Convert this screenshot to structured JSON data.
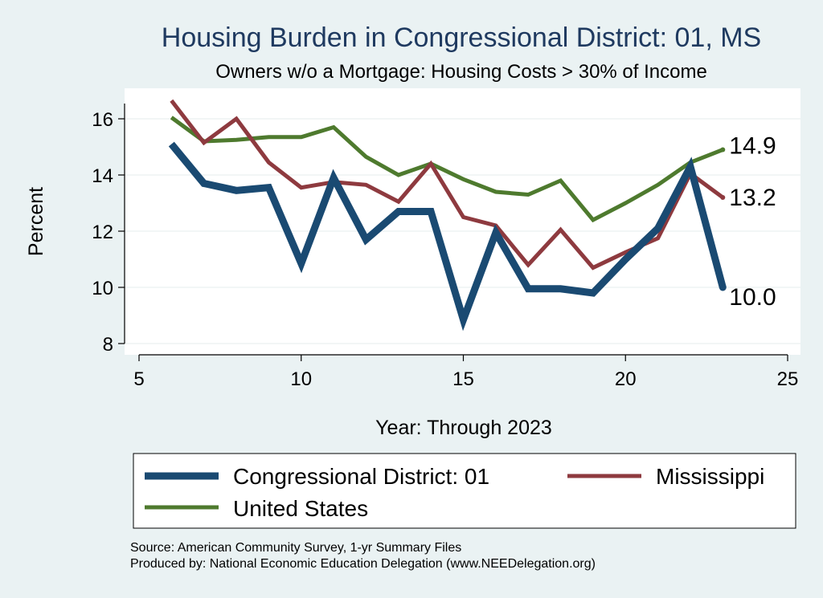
{
  "chart_data": {
    "type": "line",
    "title": "Housing Burden in Congressional District:  01, MS",
    "subtitle": "Owners w/o a Mortgage: Housing Costs > 30% of Income",
    "xlabel": "Year: Through 2023",
    "ylabel": "Percent",
    "xlim": [
      5,
      25
    ],
    "ylim": [
      7.6,
      17
    ],
    "x_ticks": [
      5,
      10,
      15,
      20,
      25
    ],
    "y_ticks": [
      8,
      10,
      12,
      14,
      16
    ],
    "grid": "horizontal",
    "x": [
      6,
      7,
      8,
      9,
      10,
      11,
      12,
      13,
      14,
      15,
      16,
      17,
      18,
      19,
      20,
      21,
      22,
      23
    ],
    "series": [
      {
        "name": "Congressional District:  01",
        "color": "#1a4a72",
        "values": [
          15.1,
          13.7,
          13.45,
          13.55,
          10.85,
          13.9,
          11.7,
          12.7,
          12.7,
          8.85,
          11.95,
          9.95,
          9.95,
          9.8,
          11.0,
          12.1,
          14.3,
          10.0
        ],
        "end_label": "10.0"
      },
      {
        "name": "Mississippi",
        "color": "#8e3a3f",
        "values": [
          16.65,
          15.15,
          16.0,
          14.45,
          13.55,
          13.75,
          13.65,
          13.05,
          14.4,
          12.5,
          12.2,
          10.8,
          12.05,
          10.7,
          11.25,
          11.75,
          14.05,
          13.2
        ],
        "end_label": "13.2"
      },
      {
        "name": "United States",
        "color": "#4e7a2e",
        "values": [
          16.05,
          15.2,
          15.25,
          15.35,
          15.35,
          15.7,
          14.65,
          14.0,
          14.4,
          13.85,
          13.4,
          13.3,
          13.8,
          12.4,
          13.0,
          13.65,
          14.45,
          14.9
        ],
        "end_label": "14.9"
      }
    ],
    "legend_position": "bottom"
  },
  "source": {
    "line1": "Source: American Community Survey, 1-yr Summary Files",
    "line2": "Produced by: National Economic Education Delegation (www.NEEDelegation.org)"
  }
}
